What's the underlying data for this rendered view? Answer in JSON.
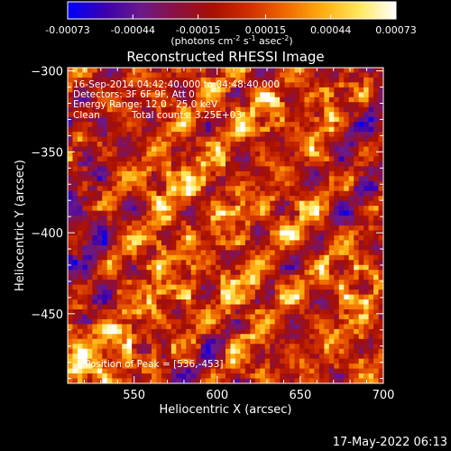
{
  "chart_data": {
    "type": "heatmap",
    "title": "Reconstructed RHESSI Image",
    "xlabel": "Heliocentric X (arcsec)",
    "ylabel": "Heliocentric Y (arcsec)",
    "xlim": [
      510,
      700
    ],
    "ylim": [
      -493,
      -298
    ],
    "x_ticks": [
      550,
      600,
      650,
      700
    ],
    "y_ticks": [
      -300,
      -350,
      -400,
      -450
    ],
    "colorbar": {
      "range": [
        -0.00073,
        0.00073
      ],
      "tick_values": [
        -0.00073,
        -0.00044,
        -0.00015,
        0.00015,
        0.00044,
        0.00073
      ],
      "tick_labels": [
        "-0.00073",
        "-0.00044",
        "-0.00015",
        "0.00015",
        "0.00044",
        "0.00073"
      ],
      "units_prefix": "(photons cm",
      "units_exp1": "-2",
      "units_mid1": " s",
      "units_exp2": "-1",
      "units_mid2": " asec",
      "units_exp3": "-2",
      "units_suffix": ")"
    },
    "annotations": {
      "time_range": "16-Sep-2014 04:42:40.000 to 04:48:40.000",
      "detectors": "Detectors: 3F 6F 9F, Att 0",
      "energy_range": "Energy Range: 12.0 - 25.0 keV",
      "clean": "Clean",
      "total_counts": "Total counts: 3.25E+03",
      "peak": "Position of Peak = [536,-453]"
    },
    "footer_timestamp": "17-May-2022 06:13"
  },
  "colors": {
    "background": "#000000",
    "colormap": [
      "#0000ff",
      "#3a00b0",
      "#6a1a8a",
      "#8c1040",
      "#a81000",
      "#d03000",
      "#f06a00",
      "#ffae10",
      "#ffe860",
      "#ffffff"
    ]
  }
}
